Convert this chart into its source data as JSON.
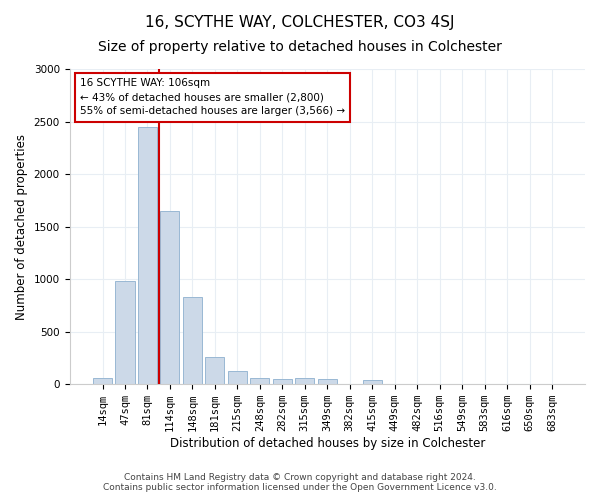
{
  "title": "16, SCYTHE WAY, COLCHESTER, CO3 4SJ",
  "subtitle": "Size of property relative to detached houses in Colchester",
  "xlabel": "Distribution of detached houses by size in Colchester",
  "ylabel": "Number of detached properties",
  "categories": [
    "14sqm",
    "47sqm",
    "81sqm",
    "114sqm",
    "148sqm",
    "181sqm",
    "215sqm",
    "248sqm",
    "282sqm",
    "315sqm",
    "349sqm",
    "382sqm",
    "415sqm",
    "449sqm",
    "482sqm",
    "516sqm",
    "549sqm",
    "583sqm",
    "616sqm",
    "650sqm",
    "683sqm"
  ],
  "values": [
    60,
    980,
    2450,
    1650,
    830,
    260,
    130,
    60,
    50,
    55,
    50,
    0,
    40,
    0,
    0,
    0,
    0,
    0,
    0,
    0,
    0
  ],
  "bar_color": "#ccd9e8",
  "bar_edge_color": "#99b8d4",
  "vline_color": "#cc0000",
  "annotation_text": "16 SCYTHE WAY: 106sqm\n← 43% of detached houses are smaller (2,800)\n55% of semi-detached houses are larger (3,566) →",
  "annotation_box_color": "#ffffff",
  "annotation_box_edge": "#cc0000",
  "ylim": [
    0,
    3000
  ],
  "yticks": [
    0,
    500,
    1000,
    1500,
    2000,
    2500,
    3000
  ],
  "footer_line1": "Contains HM Land Registry data © Crown copyright and database right 2024.",
  "footer_line2": "Contains public sector information licensed under the Open Government Licence v3.0.",
  "bg_color": "#ffffff",
  "plot_bg_color": "#ffffff",
  "grid_color": "#e8eef4",
  "title_fontsize": 11,
  "subtitle_fontsize": 10,
  "axis_label_fontsize": 8.5,
  "tick_fontsize": 7.5,
  "annotation_fontsize": 7.5
}
